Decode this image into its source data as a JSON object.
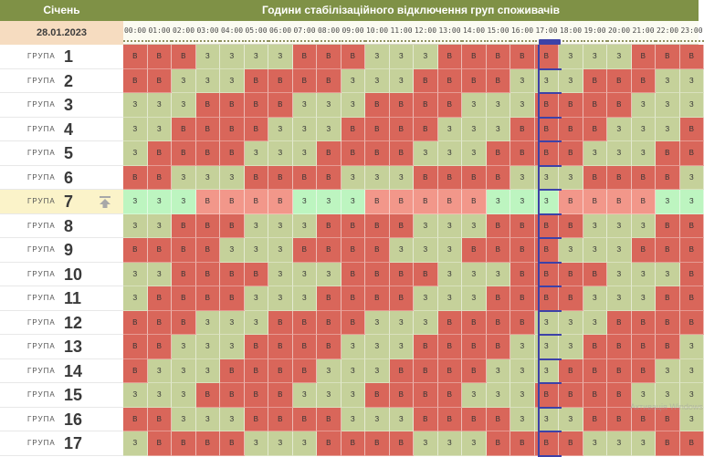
{
  "header": {
    "month": "Січень",
    "title": "Години стабілізаційного відключення груп споживачів",
    "date": "28.01.2023"
  },
  "hours": [
    "00:00",
    "01:00",
    "02:00",
    "03:00",
    "04:00",
    "05:00",
    "06:00",
    "07:00",
    "08:00",
    "09:00",
    "10:00",
    "11:00",
    "12:00",
    "13:00",
    "14:00",
    "15:00",
    "16:00",
    "17:00",
    "18:00",
    "19:00",
    "20:00",
    "21:00",
    "22:00",
    "23:00"
  ],
  "group_word": "ГРУПА",
  "selected_group": "7",
  "current_hour": "17:00",
  "groups": [
    {
      "num": "1",
      "cells": [
        "В",
        "В",
        "В",
        "З",
        "З",
        "З",
        "З",
        "В",
        "В",
        "В",
        "З",
        "З",
        "З",
        "В",
        "В",
        "В",
        "В",
        "В",
        "З",
        "З",
        "З",
        "В",
        "В",
        "В"
      ]
    },
    {
      "num": "2",
      "cells": [
        "В",
        "В",
        "З",
        "З",
        "З",
        "В",
        "В",
        "В",
        "В",
        "З",
        "З",
        "З",
        "В",
        "В",
        "В",
        "В",
        "З",
        "З",
        "З",
        "В",
        "В",
        "В",
        "З",
        "З"
      ]
    },
    {
      "num": "3",
      "cells": [
        "З",
        "З",
        "З",
        "В",
        "В",
        "В",
        "В",
        "З",
        "З",
        "З",
        "В",
        "В",
        "В",
        "В",
        "З",
        "З",
        "З",
        "В",
        "В",
        "В",
        "В",
        "З",
        "З",
        "З"
      ]
    },
    {
      "num": "4",
      "cells": [
        "З",
        "З",
        "В",
        "В",
        "В",
        "В",
        "З",
        "З",
        "З",
        "В",
        "В",
        "В",
        "В",
        "З",
        "З",
        "З",
        "В",
        "В",
        "В",
        "В",
        "З",
        "З",
        "З",
        "В"
      ]
    },
    {
      "num": "5",
      "cells": [
        "З",
        "В",
        "В",
        "В",
        "В",
        "З",
        "З",
        "З",
        "В",
        "В",
        "В",
        "В",
        "З",
        "З",
        "З",
        "В",
        "В",
        "В",
        "В",
        "З",
        "З",
        "З",
        "В",
        "В"
      ]
    },
    {
      "num": "6",
      "cells": [
        "В",
        "В",
        "З",
        "З",
        "З",
        "В",
        "В",
        "В",
        "В",
        "З",
        "З",
        "З",
        "В",
        "В",
        "В",
        "В",
        "З",
        "З",
        "З",
        "В",
        "В",
        "В",
        "В",
        "З"
      ]
    },
    {
      "num": "7",
      "cells": [
        "З",
        "З",
        "З",
        "В",
        "В",
        "В",
        "В",
        "З",
        "З",
        "З",
        "В",
        "В",
        "В",
        "В",
        "В",
        "З",
        "З",
        "З",
        "В",
        "В",
        "В",
        "В",
        "З",
        "З"
      ]
    },
    {
      "num": "8",
      "cells": [
        "З",
        "З",
        "В",
        "В",
        "В",
        "З",
        "З",
        "З",
        "В",
        "В",
        "В",
        "В",
        "З",
        "З",
        "З",
        "В",
        "В",
        "В",
        "В",
        "З",
        "З",
        "З",
        "В",
        "В"
      ]
    },
    {
      "num": "9",
      "cells": [
        "В",
        "В",
        "В",
        "В",
        "З",
        "З",
        "З",
        "В",
        "В",
        "В",
        "В",
        "З",
        "З",
        "З",
        "В",
        "В",
        "В",
        "В",
        "З",
        "З",
        "З",
        "В",
        "В",
        "В"
      ]
    },
    {
      "num": "10",
      "cells": [
        "З",
        "З",
        "В",
        "В",
        "В",
        "В",
        "З",
        "З",
        "З",
        "В",
        "В",
        "В",
        "В",
        "З",
        "З",
        "З",
        "В",
        "В",
        "В",
        "В",
        "З",
        "З",
        "З",
        "В"
      ]
    },
    {
      "num": "11",
      "cells": [
        "З",
        "В",
        "В",
        "В",
        "В",
        "З",
        "З",
        "З",
        "В",
        "В",
        "В",
        "В",
        "З",
        "З",
        "З",
        "В",
        "В",
        "В",
        "В",
        "З",
        "З",
        "З",
        "В",
        "В"
      ]
    },
    {
      "num": "12",
      "cells": [
        "В",
        "В",
        "В",
        "З",
        "З",
        "З",
        "В",
        "В",
        "В",
        "В",
        "З",
        "З",
        "З",
        "В",
        "В",
        "В",
        "В",
        "З",
        "З",
        "З",
        "В",
        "В",
        "В",
        "В"
      ]
    },
    {
      "num": "13",
      "cells": [
        "В",
        "В",
        "З",
        "З",
        "З",
        "В",
        "В",
        "В",
        "В",
        "З",
        "З",
        "З",
        "В",
        "В",
        "В",
        "В",
        "З",
        "З",
        "З",
        "В",
        "В",
        "В",
        "В",
        "З"
      ]
    },
    {
      "num": "14",
      "cells": [
        "В",
        "З",
        "З",
        "З",
        "В",
        "В",
        "В",
        "В",
        "З",
        "З",
        "З",
        "В",
        "В",
        "В",
        "В",
        "З",
        "З",
        "З",
        "В",
        "В",
        "В",
        "В",
        "З",
        "З"
      ]
    },
    {
      "num": "15",
      "cells": [
        "З",
        "З",
        "З",
        "В",
        "В",
        "В",
        "В",
        "З",
        "З",
        "З",
        "В",
        "В",
        "В",
        "В",
        "З",
        "З",
        "З",
        "В",
        "В",
        "В",
        "В",
        "З",
        "З",
        "З"
      ]
    },
    {
      "num": "16",
      "cells": [
        "В",
        "В",
        "З",
        "З",
        "З",
        "В",
        "В",
        "В",
        "В",
        "З",
        "З",
        "З",
        "В",
        "В",
        "В",
        "В",
        "З",
        "З",
        "З",
        "В",
        "В",
        "В",
        "В",
        "З"
      ]
    },
    {
      "num": "17",
      "cells": [
        "З",
        "В",
        "В",
        "В",
        "В",
        "З",
        "З",
        "З",
        "В",
        "В",
        "В",
        "В",
        "З",
        "З",
        "З",
        "В",
        "В",
        "В",
        "В",
        "З",
        "З",
        "З",
        "В",
        "В"
      ]
    }
  ],
  "colors": {
    "header_green": "#7f9146",
    "off_red": "#d9665a",
    "on_green": "#c5d19a",
    "selected_off": "#f2978a",
    "selected_on": "#bdf5c0",
    "now_marker": "#3d42a8"
  },
  "watermark": "Активація Windows"
}
